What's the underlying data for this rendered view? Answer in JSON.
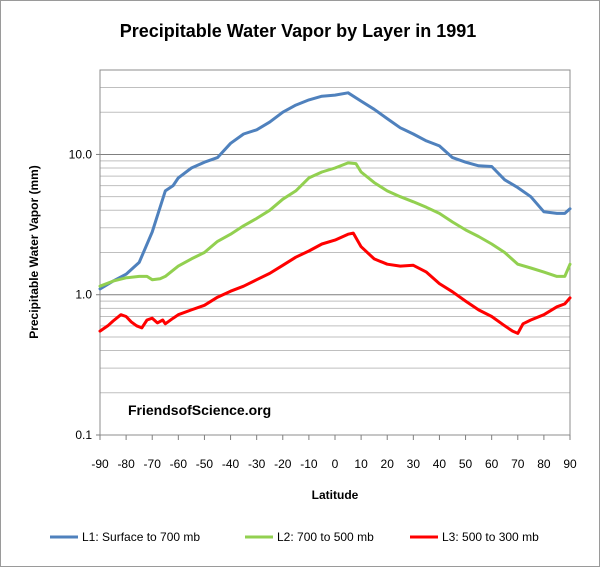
{
  "chart_data": {
    "type": "line",
    "title": "Precipitable Water Vapor by Layer in 1991",
    "xlabel": "Latitude",
    "ylabel": "Precipitable Water Vapor (mm)",
    "yscale": "log",
    "xlim": [
      -90,
      90
    ],
    "ylim": [
      0.1,
      40
    ],
    "x_ticks": [
      -90,
      -80,
      -70,
      -60,
      -50,
      -40,
      -30,
      -20,
      -10,
      0,
      10,
      20,
      30,
      40,
      50,
      60,
      70,
      80,
      90
    ],
    "x_tick_labels": [
      "-90",
      "-80",
      "-70",
      "-60",
      "-50",
      "-40",
      "-30",
      "-20",
      "-10",
      "0",
      "10",
      "20",
      "30",
      "40",
      "50",
      "60",
      "70",
      "80",
      "90"
    ],
    "y_ticks": [
      0.1,
      1.0,
      10.0
    ],
    "y_tick_labels": [
      "0.1",
      "1.0",
      "10.0"
    ],
    "grid": true,
    "legend_position": "bottom",
    "annotation": "FriendsofScience.org",
    "series": [
      {
        "name": "L1: Surface to 700 mb",
        "color": "#4f81bd",
        "x": [
          -90,
          -85,
          -80,
          -75,
          -70,
          -65,
          -62,
          -60,
          -55,
          -50,
          -45,
          -40,
          -35,
          -30,
          -25,
          -20,
          -15,
          -10,
          -5,
          0,
          5,
          10,
          15,
          20,
          25,
          30,
          35,
          40,
          45,
          50,
          55,
          60,
          65,
          70,
          75,
          80,
          85,
          88,
          90
        ],
        "y": [
          1.1,
          1.25,
          1.4,
          1.7,
          2.8,
          5.5,
          6.0,
          6.8,
          8.0,
          8.8,
          9.5,
          12.0,
          14.0,
          15.0,
          17.0,
          20.0,
          22.5,
          24.5,
          26.0,
          26.5,
          27.5,
          24.0,
          21.0,
          18.0,
          15.5,
          14.0,
          12.5,
          11.5,
          9.5,
          8.8,
          8.3,
          8.2,
          6.6,
          5.8,
          5.0,
          3.9,
          3.8,
          3.8,
          4.1
        ]
      },
      {
        "name": "L2: 700 to 500 mb",
        "color": "#92d050",
        "x": [
          -90,
          -85,
          -80,
          -75,
          -72,
          -70,
          -67,
          -65,
          -60,
          -55,
          -50,
          -45,
          -40,
          -35,
          -30,
          -25,
          -20,
          -15,
          -10,
          -5,
          0,
          5,
          8,
          10,
          15,
          20,
          25,
          30,
          35,
          40,
          45,
          50,
          55,
          60,
          65,
          70,
          75,
          80,
          85,
          88,
          90
        ],
        "y": [
          1.15,
          1.25,
          1.32,
          1.35,
          1.35,
          1.28,
          1.3,
          1.35,
          1.6,
          1.8,
          2.0,
          2.4,
          2.7,
          3.1,
          3.5,
          4.0,
          4.8,
          5.5,
          6.8,
          7.5,
          8.0,
          8.7,
          8.6,
          7.5,
          6.3,
          5.5,
          5.0,
          4.6,
          4.2,
          3.8,
          3.3,
          2.9,
          2.6,
          2.3,
          2.0,
          1.65,
          1.55,
          1.45,
          1.35,
          1.35,
          1.65
        ]
      },
      {
        "name": "L3: 500 to 300 mb",
        "color": "#ff0000",
        "x": [
          -90,
          -87,
          -85,
          -82,
          -80,
          -78,
          -76,
          -74,
          -72,
          -70,
          -68,
          -66,
          -65,
          -64,
          -62,
          -60,
          -55,
          -50,
          -45,
          -40,
          -35,
          -30,
          -25,
          -20,
          -15,
          -10,
          -5,
          0,
          5,
          7,
          10,
          15,
          20,
          25,
          30,
          35,
          40,
          45,
          50,
          55,
          60,
          65,
          68,
          70,
          72,
          75,
          80,
          85,
          88,
          90
        ],
        "y": [
          0.55,
          0.6,
          0.65,
          0.72,
          0.7,
          0.64,
          0.6,
          0.58,
          0.66,
          0.68,
          0.63,
          0.66,
          0.62,
          0.64,
          0.68,
          0.72,
          0.78,
          0.84,
          0.96,
          1.06,
          1.15,
          1.28,
          1.42,
          1.62,
          1.85,
          2.05,
          2.3,
          2.45,
          2.7,
          2.75,
          2.2,
          1.8,
          1.65,
          1.6,
          1.62,
          1.45,
          1.2,
          1.05,
          0.9,
          0.78,
          0.7,
          0.6,
          0.55,
          0.53,
          0.62,
          0.66,
          0.72,
          0.82,
          0.86,
          0.95
        ]
      }
    ]
  }
}
